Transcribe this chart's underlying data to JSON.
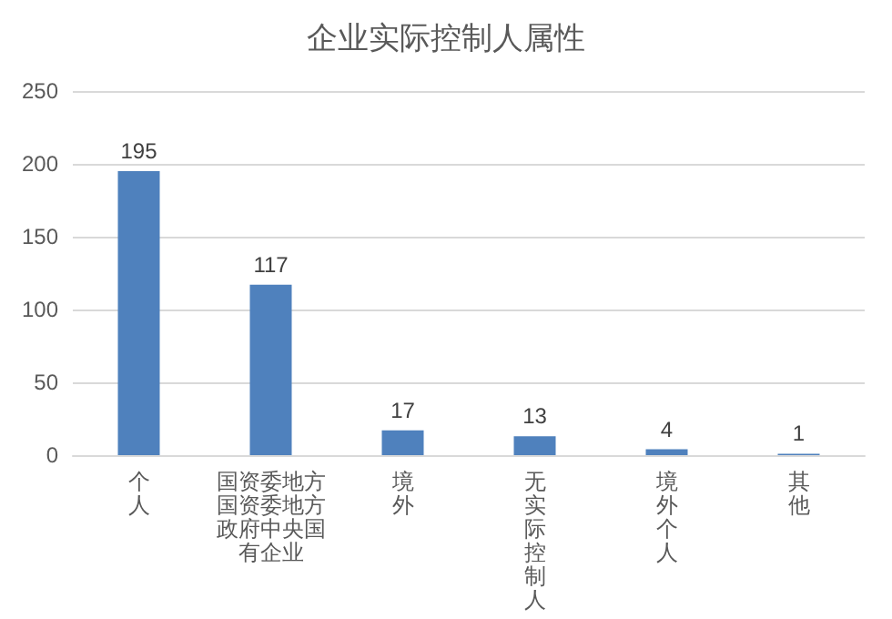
{
  "chart_data": {
    "type": "bar",
    "title": "企业实际控制人属性",
    "categories": [
      "个人",
      "国资委地方国资委地方政府中央国有企业",
      "境外",
      "无实际控制人",
      "境外个人",
      "其他"
    ],
    "values": [
      195,
      117,
      17,
      13,
      4,
      1
    ],
    "color": "#4f81bd",
    "ylim": [
      0,
      250
    ],
    "yticks": [
      0,
      50,
      100,
      150,
      200,
      250
    ],
    "grid": "y",
    "data_labels": true
  }
}
